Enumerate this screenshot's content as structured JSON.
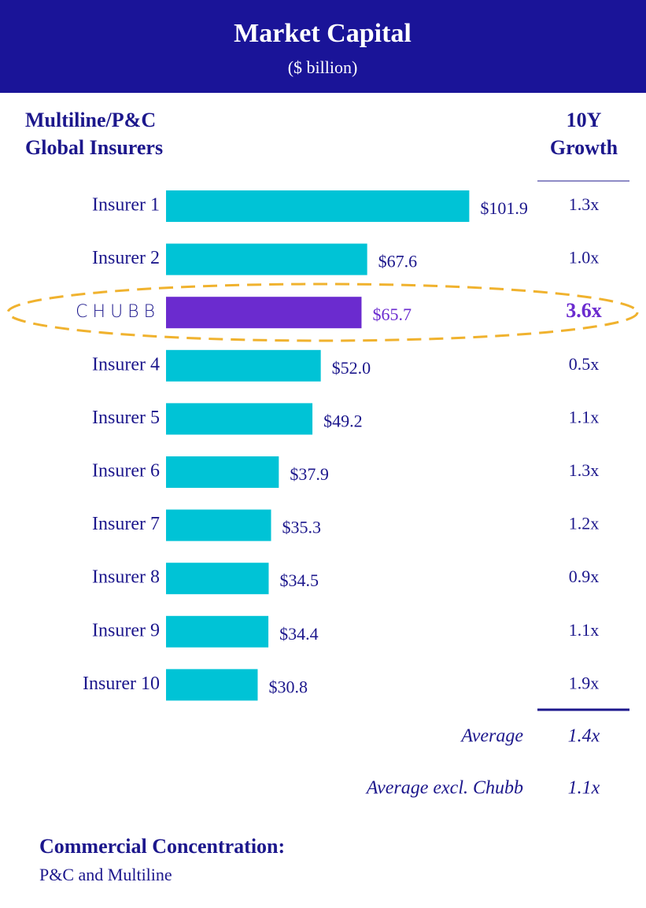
{
  "chart_data": {
    "type": "hbar",
    "title": "Market Capital",
    "subtitle": "($ billion)",
    "header_left": [
      "Multiline/P&C",
      "Global Insurers"
    ],
    "header_right": [
      "10Y",
      "Growth"
    ],
    "categories": [
      "Insurer 1",
      "Insurer 2",
      "CHUBB",
      "Insurer 4",
      "Insurer 5",
      "Insurer 6",
      "Insurer 7",
      "Insurer 8",
      "Insurer 9",
      "Insurer 10"
    ],
    "values": [
      101.9,
      67.6,
      65.7,
      52.0,
      49.2,
      37.9,
      35.3,
      34.5,
      34.4,
      30.8
    ],
    "value_labels": [
      "$101.9",
      "$67.6",
      "$65.7",
      "$52.0",
      "$49.2",
      "$37.9",
      "$35.3",
      "$34.5",
      "$34.4",
      "$30.8"
    ],
    "growth_labels": [
      "1.3x",
      "1.0x",
      "3.6x",
      "0.5x",
      "1.1x",
      "1.3x",
      "1.2x",
      "0.9x",
      "1.1x",
      "1.9x"
    ],
    "color": "#00c3d6",
    "highlight_color": "#6b2bcf",
    "highlight_index": 2,
    "xlim": [
      0,
      110
    ],
    "averages": [
      {
        "label": "Average",
        "value": "1.4x"
      },
      {
        "label": "Average excl. Chubb",
        "value": "1.1x"
      }
    ],
    "footer_title": "Commercial Concentration:",
    "footer_text": "P&C and Multiline"
  }
}
